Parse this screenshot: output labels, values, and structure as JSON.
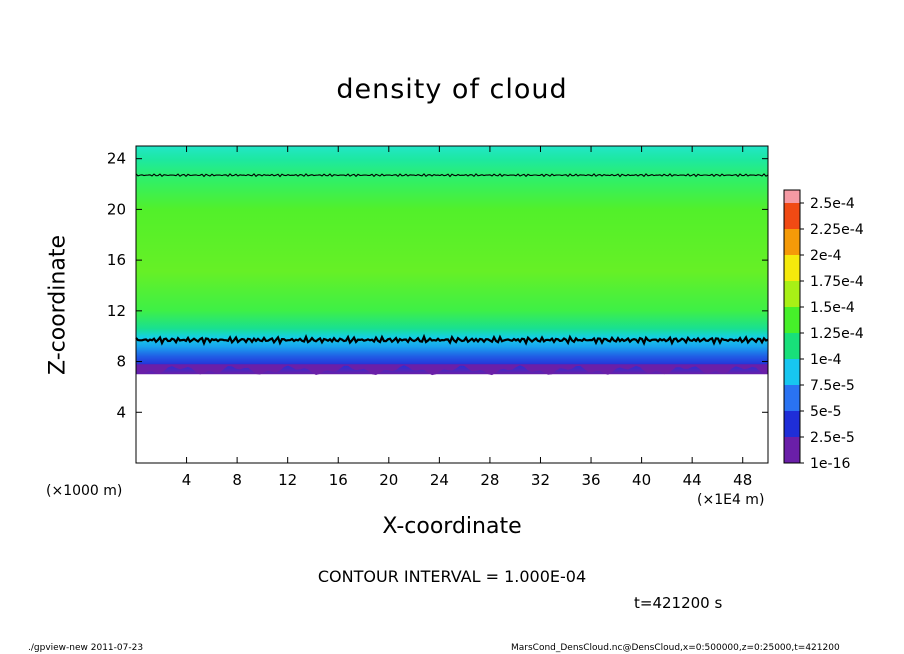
{
  "chart_data": {
    "type": "heatmap",
    "title": "density of cloud",
    "xlabel": "X-coordinate",
    "ylabel": "Z-coordinate",
    "x_unit": "(×1E4 m)",
    "y_unit": "(×1000 m)",
    "xlim": [
      0,
      50
    ],
    "ylim": [
      0,
      25
    ],
    "x_ticks": [
      4,
      8,
      12,
      16,
      20,
      24,
      28,
      32,
      36,
      40,
      44,
      48
    ],
    "y_ticks": [
      4,
      8,
      12,
      16,
      20,
      24
    ],
    "contour_interval_text": "CONTOUR INTERVAL = 1.000E-04",
    "time_text": "t=421200 s",
    "colorbar": {
      "labels": [
        "1e-16",
        "2.5e-5",
        "5e-5",
        "7.5e-5",
        "1e-4",
        "1.25e-4",
        "1.5e-4",
        "1.75e-4",
        "2e-4",
        "2.25e-4",
        "2.5e-4"
      ],
      "colors": [
        "#6a1fa8",
        "#1f2ed8",
        "#2a73f2",
        "#17c6f0",
        "#18e07a",
        "#46f02a",
        "#a8f016",
        "#f5ea0c",
        "#f59a08",
        "#f04a14",
        "#f59aa4"
      ]
    },
    "cloud_layer": {
      "bottom_z": 7,
      "top_z": 24.5,
      "contour_levels_z": [
        9.7,
        22.7
      ]
    }
  },
  "footer": {
    "left": "./gpview-new   2011-07-23",
    "right": "MarsCond_DensCloud.nc@DensCloud,x=0:500000,z=0:25000,t=421200"
  }
}
